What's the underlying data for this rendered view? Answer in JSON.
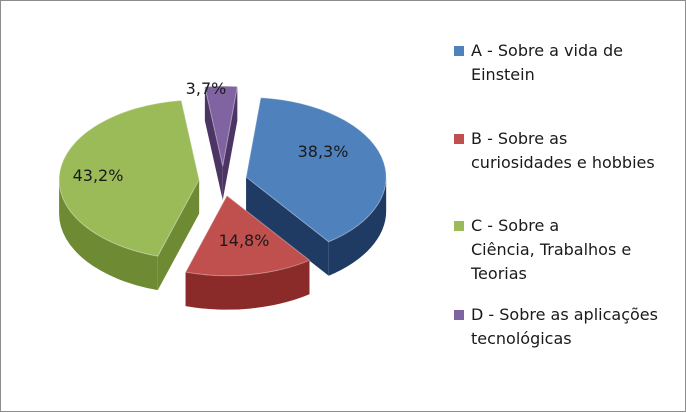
{
  "chart_data": {
    "type": "pie",
    "style": "3d-exploded",
    "legend_position": "right",
    "slices": [
      {
        "label": "A - Sobre a vida de Einstein",
        "value": 38.3,
        "display": "38,3%",
        "color": "#4f81bd",
        "side_color": "#1f3b63"
      },
      {
        "label": "B - Sobre as curiosidades e hobbies",
        "value": 14.8,
        "display": "14,8%",
        "color": "#c0504d",
        "side_color": "#8a2b29"
      },
      {
        "label": "C - Sobre a Ciência, Trabalhos e Teorias",
        "value": 43.2,
        "display": "43,2%",
        "color": "#9bbb59",
        "side_color": "#6e8a33"
      },
      {
        "label": "D - Sobre as aplicações tecnológicas",
        "value": 3.7,
        "display": "3,7%",
        "color": "#8064a2",
        "side_color": "#4c3564"
      }
    ]
  },
  "legend": {
    "items": [
      {
        "lines": [
          "A - Sobre a vida de",
          "Einstein"
        ]
      },
      {
        "lines": [
          "B - Sobre as",
          "curiosidades e hobbies"
        ]
      },
      {
        "lines": [
          "C - Sobre a",
          "Ciência, Trabalhos e",
          "Teorias"
        ]
      },
      {
        "lines": [
          "D - Sobre as aplicações",
          "tecnológicas"
        ]
      }
    ]
  }
}
